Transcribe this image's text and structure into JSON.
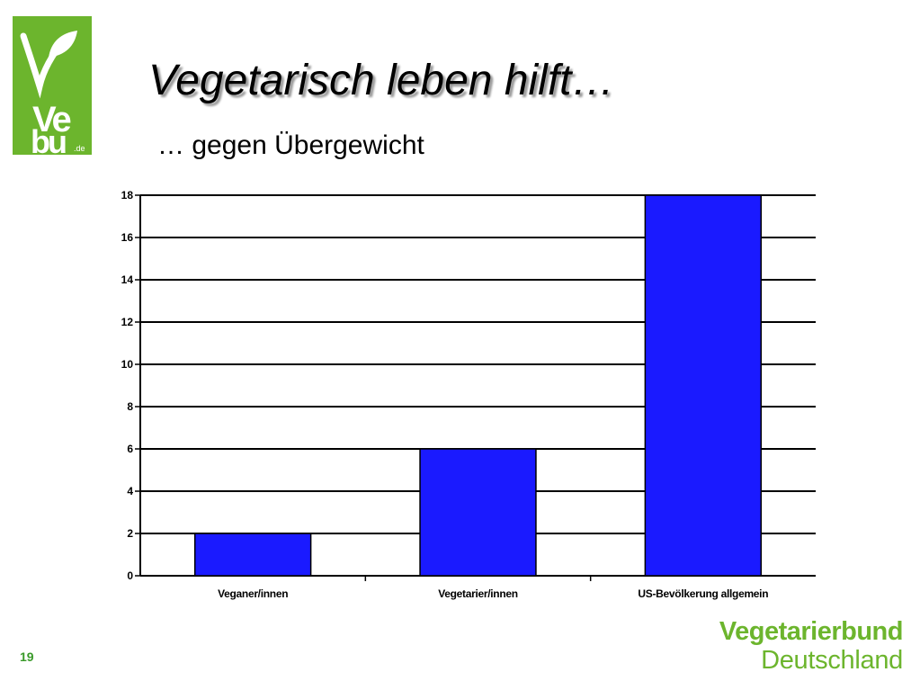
{
  "logo": {
    "text": "Vebu.de"
  },
  "slide": {
    "title": "Vegetarisch leben hilft…",
    "subtitle": "… gegen Übergewicht",
    "page_number": "19"
  },
  "brand": {
    "line1": "Vegetarierbund",
    "line2": "Deutschland"
  },
  "colors": {
    "bar": "#1a1aff",
    "brand_green": "#6cb52d",
    "page_number": "#3a9a2a"
  },
  "chart_data": {
    "type": "bar",
    "categories": [
      "Veganer/innen",
      "Vegetarier/innen",
      "US-Bevölkerung allgemein"
    ],
    "values": [
      2,
      6,
      18
    ],
    "title": "",
    "xlabel": "",
    "ylabel": "",
    "ylim": [
      0,
      18
    ],
    "yticks": [
      0,
      2,
      4,
      6,
      8,
      10,
      12,
      14,
      16,
      18
    ],
    "grid": true,
    "legend": "none"
  }
}
